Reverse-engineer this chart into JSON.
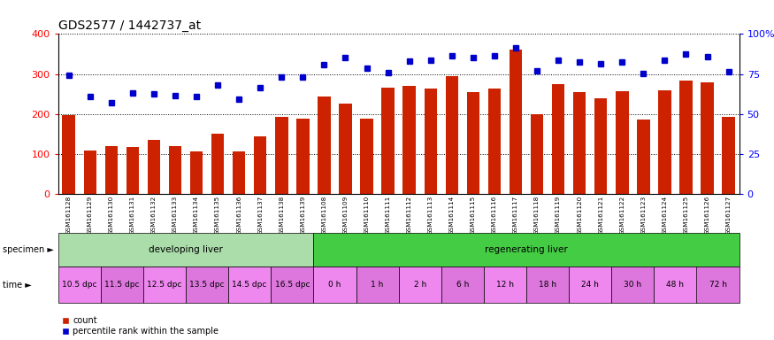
{
  "title": "GDS2577 / 1442737_at",
  "samples": [
    "GSM161128",
    "GSM161129",
    "GSM161130",
    "GSM161131",
    "GSM161132",
    "GSM161133",
    "GSM161134",
    "GSM161135",
    "GSM161136",
    "GSM161137",
    "GSM161138",
    "GSM161139",
    "GSM161108",
    "GSM161109",
    "GSM161110",
    "GSM161111",
    "GSM161112",
    "GSM161113",
    "GSM161114",
    "GSM161115",
    "GSM161116",
    "GSM161117",
    "GSM161118",
    "GSM161119",
    "GSM161120",
    "GSM161121",
    "GSM161122",
    "GSM161123",
    "GSM161124",
    "GSM161125",
    "GSM161126",
    "GSM161127"
  ],
  "counts": [
    197,
    108,
    120,
    118,
    135,
    120,
    107,
    150,
    107,
    143,
    192,
    188,
    243,
    226,
    188,
    265,
    270,
    263,
    295,
    255,
    263,
    360,
    200,
    275,
    255,
    240,
    257,
    187,
    260,
    284,
    278,
    193
  ],
  "percentiles": [
    74.25,
    60.75,
    57.0,
    63.25,
    62.5,
    61.25,
    60.75,
    68.25,
    59.25,
    66.25,
    73.0,
    73.25,
    80.75,
    85.0,
    78.5,
    75.75,
    83.25,
    83.75,
    86.25,
    85.0,
    86.25,
    91.25,
    77.0,
    83.75,
    82.5,
    81.25,
    82.5,
    75.5,
    83.75,
    87.5,
    85.75,
    76.25
  ],
  "bar_color": "#cc2200",
  "dot_color": "#0000cc",
  "ylim_left": [
    0,
    400
  ],
  "ylim_right": [
    0,
    100
  ],
  "yticks_left": [
    0,
    100,
    200,
    300,
    400
  ],
  "yticks_right": [
    0,
    25,
    50,
    75,
    100
  ],
  "ytick_labels_right": [
    "0",
    "25",
    "50",
    "75",
    "100%"
  ],
  "specimen_groups": [
    {
      "label": "developing liver",
      "start": 0,
      "end": 12,
      "color": "#aaddaa"
    },
    {
      "label": "regenerating liver",
      "start": 12,
      "end": 32,
      "color": "#44cc44"
    }
  ],
  "time_labels": [
    {
      "label": "10.5 dpc",
      "start": 0,
      "end": 2
    },
    {
      "label": "11.5 dpc",
      "start": 2,
      "end": 4
    },
    {
      "label": "12.5 dpc",
      "start": 4,
      "end": 6
    },
    {
      "label": "13.5 dpc",
      "start": 6,
      "end": 8
    },
    {
      "label": "14.5 dpc",
      "start": 8,
      "end": 10
    },
    {
      "label": "16.5 dpc",
      "start": 10,
      "end": 12
    },
    {
      "label": "0 h",
      "start": 12,
      "end": 14
    },
    {
      "label": "1 h",
      "start": 14,
      "end": 16
    },
    {
      "label": "2 h",
      "start": 16,
      "end": 18
    },
    {
      "label": "6 h",
      "start": 18,
      "end": 20
    },
    {
      "label": "12 h",
      "start": 20,
      "end": 22
    },
    {
      "label": "18 h",
      "start": 22,
      "end": 24
    },
    {
      "label": "24 h",
      "start": 24,
      "end": 26
    },
    {
      "label": "30 h",
      "start": 26,
      "end": 28
    },
    {
      "label": "48 h",
      "start": 28,
      "end": 30
    },
    {
      "label": "72 h",
      "start": 30,
      "end": 32
    }
  ],
  "time_color": "#ee88ee",
  "bg_color": "#ffffff",
  "grid_color": "#000000",
  "specimen_label": "specimen",
  "time_label_text": "time",
  "legend_count": "count",
  "legend_percentile": "percentile rank within the sample",
  "title_fontsize": 10,
  "axis_fontsize": 8,
  "label_fontsize": 8
}
